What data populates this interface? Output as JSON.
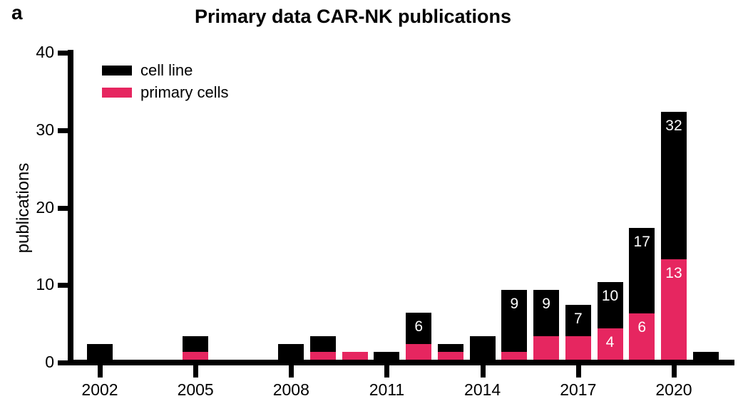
{
  "panel_label": "a",
  "title": "Primary data CAR-NK publications",
  "ylabel": "publications",
  "colors": {
    "cell_line": "#000000",
    "primary_cells": "#E62660",
    "bar_label_text": "#ffffff"
  },
  "chart_data": {
    "type": "bar",
    "stacked": true,
    "title": "Primary data CAR-NK publications",
    "xlabel": "",
    "ylabel": "publications",
    "ylim": [
      0,
      40
    ],
    "yticks": [
      0,
      10,
      20,
      30,
      40
    ],
    "xticks": [
      2002,
      2005,
      2008,
      2011,
      2014,
      2017,
      2020
    ],
    "grid": false,
    "legend_position": "top-left-inside",
    "series": [
      {
        "name": "cell line",
        "color": "#000000"
      },
      {
        "name": "primary cells",
        "color": "#E62660"
      }
    ],
    "bars": [
      {
        "year": 2002,
        "primary_cells": 0,
        "cell_line": 2,
        "total": 2
      },
      {
        "year": 2005,
        "primary_cells": 1,
        "cell_line": 2,
        "total": 3
      },
      {
        "year": 2008,
        "primary_cells": 0,
        "cell_line": 2,
        "total": 2
      },
      {
        "year": 2009,
        "primary_cells": 1,
        "cell_line": 2,
        "total": 3
      },
      {
        "year": 2010,
        "primary_cells": 1,
        "cell_line": 0,
        "total": 1
      },
      {
        "year": 2011,
        "primary_cells": 0,
        "cell_line": 1,
        "total": 1
      },
      {
        "year": 2012,
        "primary_cells": 2,
        "cell_line": 4,
        "total": 6,
        "total_label": "6"
      },
      {
        "year": 2013,
        "primary_cells": 1,
        "cell_line": 1,
        "total": 2
      },
      {
        "year": 2014,
        "primary_cells": 0,
        "cell_line": 3,
        "total": 3
      },
      {
        "year": 2015,
        "primary_cells": 1,
        "cell_line": 8,
        "total": 9,
        "total_label": "9"
      },
      {
        "year": 2016,
        "primary_cells": 3,
        "cell_line": 6,
        "total": 9,
        "total_label": "9"
      },
      {
        "year": 2017,
        "primary_cells": 3,
        "cell_line": 4,
        "total": 7,
        "total_label": "7"
      },
      {
        "year": 2018,
        "primary_cells": 4,
        "cell_line": 6,
        "total": 10,
        "total_label": "10",
        "primary_label": "4"
      },
      {
        "year": 2019,
        "primary_cells": 6,
        "cell_line": 11,
        "total": 17,
        "total_label": "17",
        "primary_label": "6"
      },
      {
        "year": 2020,
        "primary_cells": 13,
        "cell_line": 19,
        "total": 32,
        "total_label": "32",
        "primary_label": "13"
      },
      {
        "year": 2021,
        "primary_cells": 0,
        "cell_line": 1,
        "total": 1
      }
    ]
  }
}
